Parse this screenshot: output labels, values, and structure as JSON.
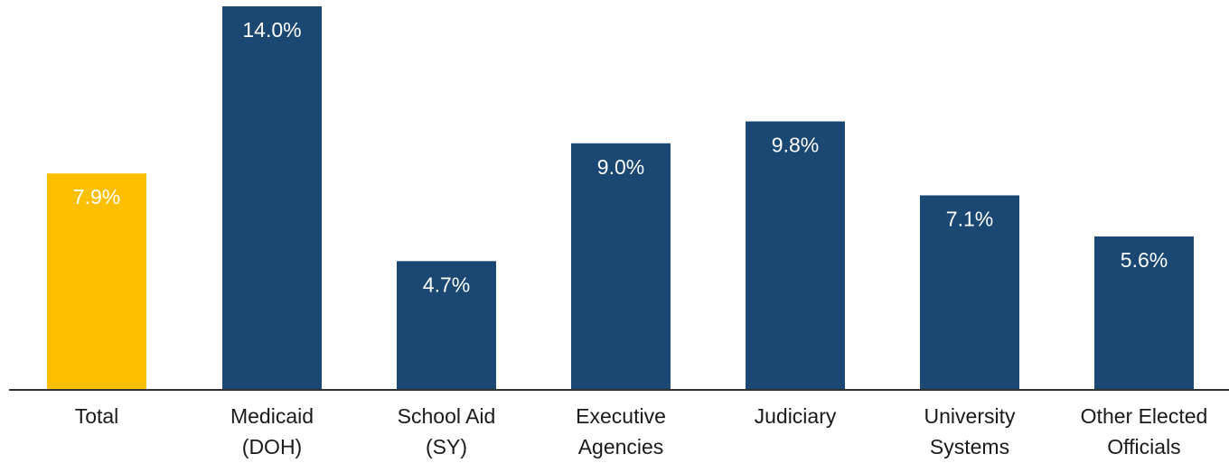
{
  "chart_data": {
    "type": "bar",
    "categories": [
      [
        "Total"
      ],
      [
        "Medicaid",
        "(DOH)"
      ],
      [
        "School Aid",
        "(SY)"
      ],
      [
        "Executive",
        "Agencies"
      ],
      [
        "Judiciary"
      ],
      [
        "University",
        "Systems"
      ],
      [
        "Other Elected",
        "Officials"
      ]
    ],
    "values": [
      7.9,
      14.0,
      4.7,
      9.0,
      9.8,
      7.1,
      5.6
    ],
    "data_labels": [
      "7.9%",
      "14.0%",
      "4.7%",
      "9.0%",
      "9.8%",
      "7.1%",
      "5.6%"
    ],
    "highlight_index": 0,
    "ylim": [
      0,
      14.0
    ],
    "grid": false,
    "legend": "none"
  },
  "colors": {
    "highlight": "#FBBF00",
    "bar": "#1A4872",
    "axis": "#333333"
  }
}
